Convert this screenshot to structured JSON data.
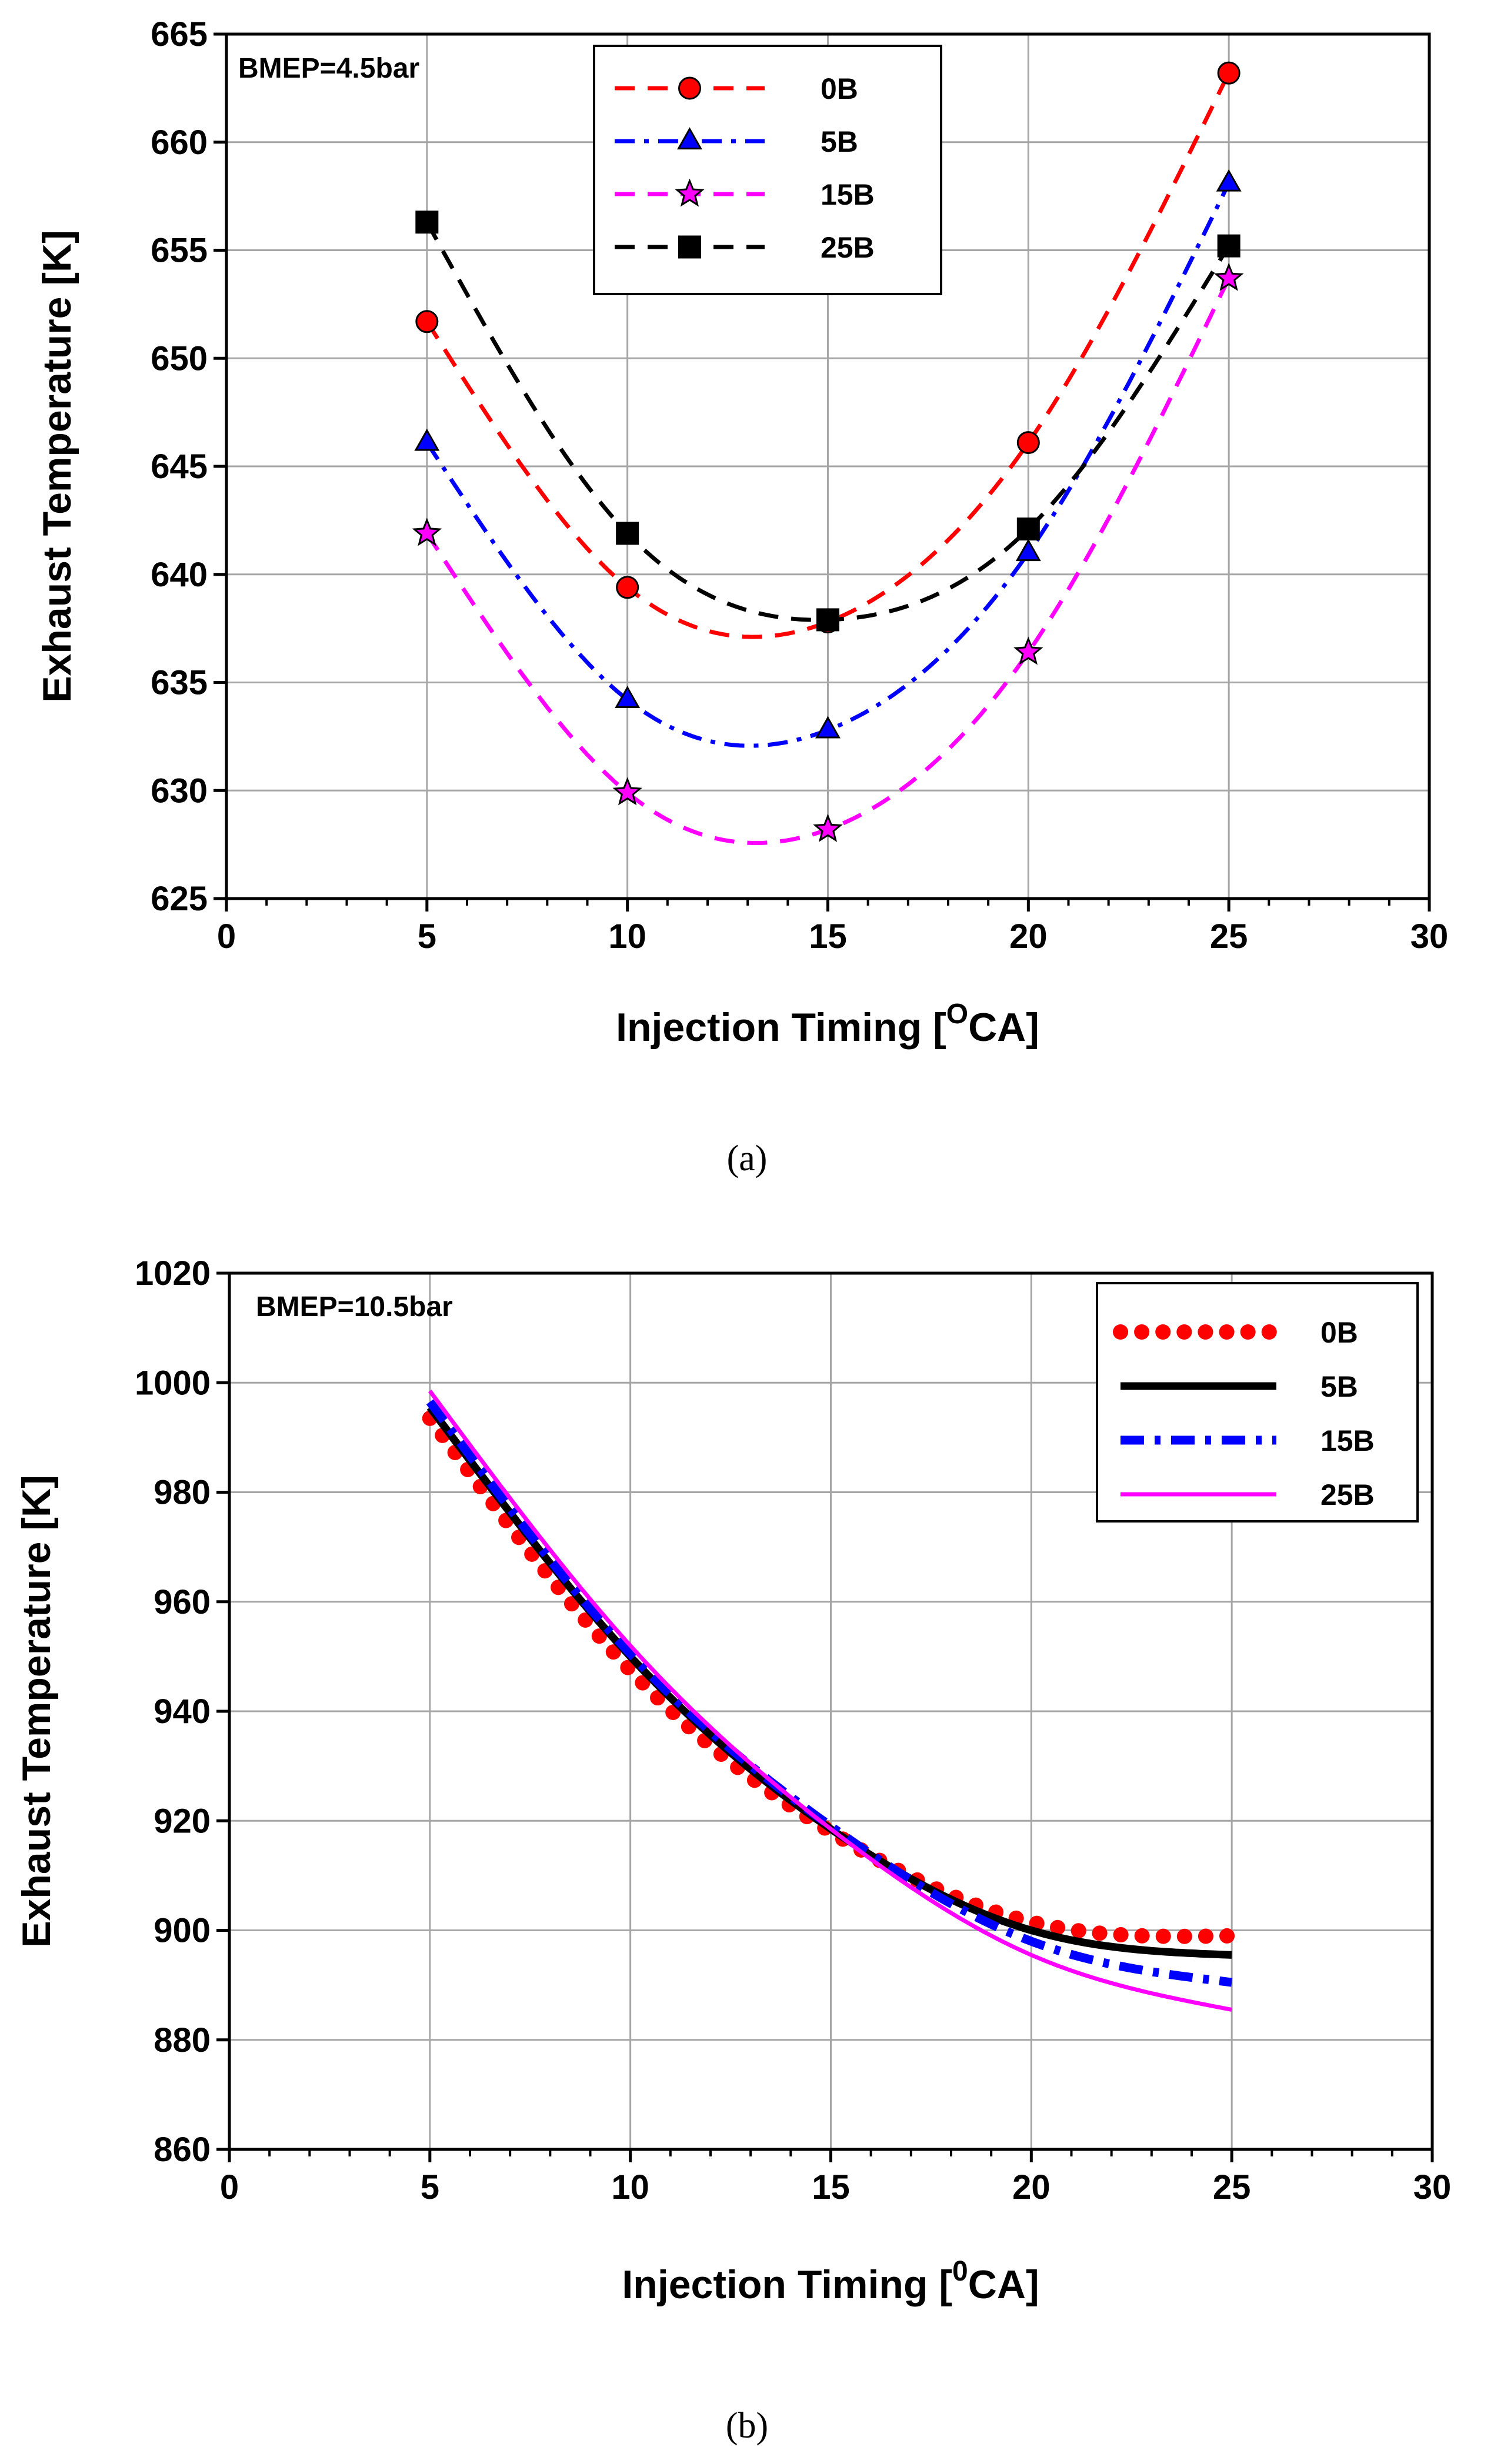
{
  "chart_data": [
    {
      "type": "line",
      "panel": "(a)",
      "caption": "(a)",
      "annotation": "BMEP=4.5bar",
      "xlabel_main": "Injection Timing [",
      "xlabel_sup": "O",
      "xlabel_tail": "CA]",
      "ylabel": "Exhaust Temperature [K]",
      "xlim": [
        0,
        30
      ],
      "ylim": [
        625,
        665
      ],
      "xticks": [
        0,
        5,
        10,
        15,
        20,
        25,
        30
      ],
      "yticks": [
        625,
        630,
        635,
        640,
        645,
        650,
        655,
        660,
        665
      ],
      "legend_position": "top-center",
      "x": [
        5,
        10,
        15,
        20,
        25
      ],
      "series": [
        {
          "name": "0B",
          "color": "#ff0000",
          "marker": "circle",
          "dash": "dashed",
          "values": [
            651.7,
            639.4,
            637.8,
            646.1,
            663.2
          ]
        },
        {
          "name": "5B",
          "color": "#0000ff",
          "marker": "triangle",
          "dash": "dashdot",
          "values": [
            646.1,
            634.2,
            632.8,
            641.0,
            658.1
          ]
        },
        {
          "name": "15B",
          "color": "#ff00ff",
          "marker": "star",
          "dash": "dashed",
          "values": [
            641.9,
            629.9,
            628.2,
            636.4,
            653.7
          ]
        },
        {
          "name": "25B",
          "color": "#000000",
          "marker": "square",
          "dash": "dashed",
          "values": [
            656.3,
            641.9,
            637.9,
            642.1,
            655.2
          ]
        }
      ]
    },
    {
      "type": "line",
      "panel": "(b)",
      "caption": "(b)",
      "annotation": "BMEP=10.5bar",
      "xlabel_main": "Injection Timing [",
      "xlabel_sup": "0",
      "xlabel_tail": "CA]",
      "ylabel": "Exhaust Temperature [K]",
      "xlim": [
        0,
        30
      ],
      "ylim": [
        860,
        1020
      ],
      "xticks": [
        0,
        5,
        10,
        15,
        20,
        25,
        30
      ],
      "yticks": [
        860,
        880,
        900,
        920,
        940,
        960,
        980,
        1000,
        1020
      ],
      "legend_position": "top-right",
      "x": [
        5,
        10,
        15,
        20,
        25
      ],
      "series": [
        {
          "name": "0B",
          "color": "#ff0000",
          "style": "dotted",
          "values": [
            993.5,
            947.5,
            918.0,
            901.5,
            899.0
          ]
        },
        {
          "name": "5B",
          "color": "#000000",
          "style": "solid-thick",
          "values": [
            995.5,
            950.0,
            918.5,
            900.0,
            895.5
          ]
        },
        {
          "name": "15B",
          "color": "#0000ff",
          "style": "dashdot-thick",
          "values": [
            996.5,
            950.5,
            919.0,
            898.0,
            890.5
          ]
        },
        {
          "name": "25B",
          "color": "#ff00ff",
          "style": "solid-thin",
          "values": [
            998.5,
            952.0,
            918.5,
            895.5,
            885.5
          ]
        }
      ]
    }
  ]
}
